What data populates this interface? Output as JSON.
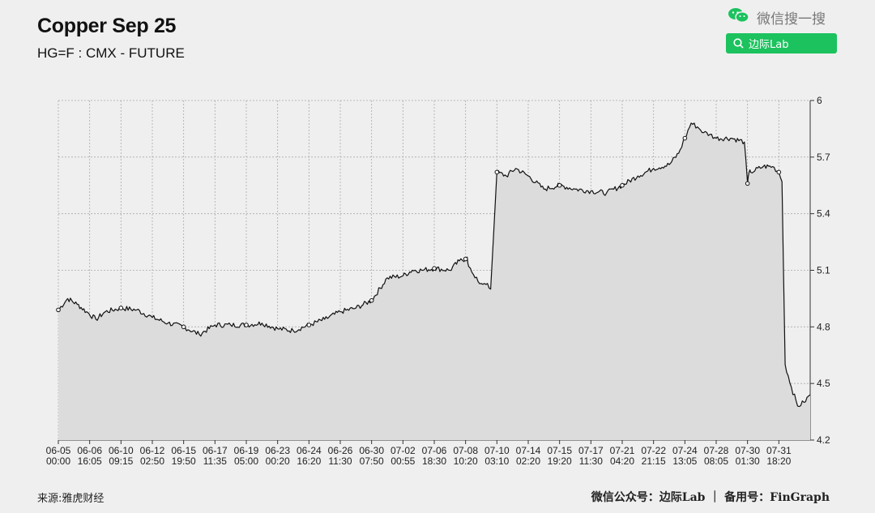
{
  "header": {
    "title": "Copper Sep 25",
    "subtitle": "HG=F : CMX - FUTURE"
  },
  "wechat": {
    "label": "微信搜一搜",
    "search_text": "边际Lab"
  },
  "footer": {
    "source": "来源:雅虎财经",
    "credit": "微信公众号：边际Lab ｜ 备用号：FinGraph"
  },
  "colors": {
    "line": "#111111",
    "area": "#dcdcdc",
    "grid": "#aaaaaa",
    "accent": "#1bc25e"
  },
  "chart_data": {
    "type": "area",
    "y_axis_position": "right",
    "ylim": [
      4.2,
      6.0
    ],
    "y_ticks": [
      "4.2",
      "4.5",
      "4.8",
      "5.1",
      "5.4",
      "5.7",
      "6"
    ],
    "x_ticks": [
      [
        "06-05",
        "00:00"
      ],
      [
        "06-06",
        "16:05"
      ],
      [
        "06-10",
        "09:15"
      ],
      [
        "06-12",
        "02:50"
      ],
      [
        "06-15",
        "19:50"
      ],
      [
        "06-17",
        "11:35"
      ],
      [
        "06-19",
        "05:00"
      ],
      [
        "06-23",
        "00:20"
      ],
      [
        "06-24",
        "16:20"
      ],
      [
        "06-26",
        "11:30"
      ],
      [
        "06-30",
        "07:50"
      ],
      [
        "07-02",
        "00:55"
      ],
      [
        "07-06",
        "18:30"
      ],
      [
        "07-08",
        "10:20"
      ],
      [
        "07-10",
        "03:10"
      ],
      [
        "07-14",
        "02:20"
      ],
      [
        "07-15",
        "19:20"
      ],
      [
        "07-17",
        "11:30"
      ],
      [
        "07-21",
        "04:20"
      ],
      [
        "07-22",
        "21:15"
      ],
      [
        "07-24",
        "13:05"
      ],
      [
        "07-28",
        "08:05"
      ],
      [
        "07-30",
        "01:30"
      ],
      [
        "07-31",
        "18:20"
      ]
    ],
    "grid": true,
    "series": [
      {
        "x": [
          0,
          0.3,
          0.6,
          0.9,
          1.2,
          1.5,
          2,
          2.5,
          3,
          3.5,
          4,
          4.5,
          5,
          5.5,
          6,
          6.5,
          7,
          7.5,
          8,
          8.5,
          9,
          9.5,
          10,
          10.5,
          11,
          11.3,
          11.6,
          12,
          12.5,
          12.8,
          13,
          13.05,
          13.1,
          13.2,
          13.3,
          13.4,
          13.5,
          13.6,
          13.7,
          13.8,
          14,
          14.3,
          14.6,
          15,
          15.5,
          16,
          16.5,
          17,
          17.5,
          18,
          18.5,
          19,
          19.5,
          19.8,
          20,
          20.2,
          20.4,
          20.6,
          20.8,
          21,
          21.5,
          21.9,
          22,
          22.05,
          22.1,
          22.5,
          22.8,
          23,
          23.1,
          23.2,
          23.4,
          23.6,
          23.8,
          24
        ],
        "values": [
          4.89,
          4.95,
          4.92,
          4.88,
          4.84,
          4.88,
          4.9,
          4.89,
          4.85,
          4.82,
          4.8,
          4.76,
          4.81,
          4.81,
          4.81,
          4.82,
          4.79,
          4.78,
          4.81,
          4.84,
          4.88,
          4.9,
          4.94,
          5.06,
          5.07,
          5.1,
          5.1,
          5.11,
          5.1,
          5.15,
          5.16,
          5.17,
          5.12,
          5.09,
          5.06,
          5.04,
          5.03,
          5.03,
          5.03,
          5.0,
          5.62,
          5.6,
          5.64,
          5.6,
          5.53,
          5.55,
          5.53,
          5.52,
          5.51,
          5.55,
          5.6,
          5.64,
          5.66,
          5.72,
          5.8,
          5.88,
          5.86,
          5.83,
          5.82,
          5.8,
          5.8,
          5.78,
          5.56,
          5.62,
          5.62,
          5.65,
          5.65,
          5.62,
          5.57,
          4.6,
          4.48,
          4.38,
          4.4,
          4.44
        ]
      }
    ]
  }
}
